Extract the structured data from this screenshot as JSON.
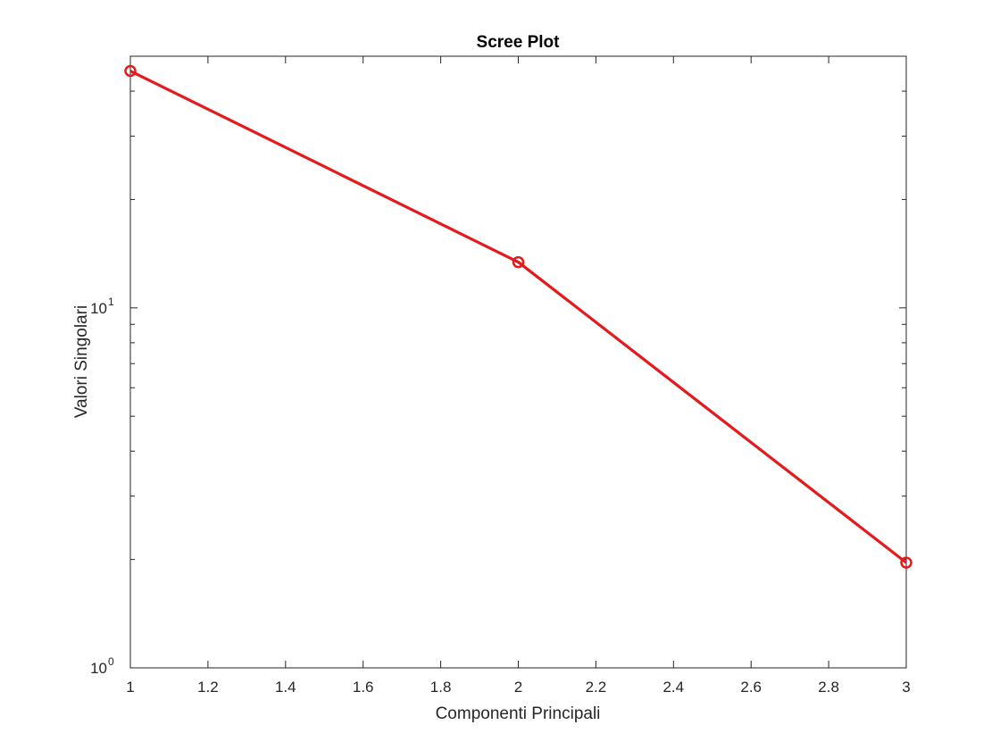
{
  "chart_data": {
    "type": "line",
    "title": "Scree Plot",
    "xlabel": "Componenti Principali",
    "ylabel": "Valori Singolari",
    "y_scale": "log",
    "xlim": [
      1,
      3
    ],
    "ylim": [
      1,
      50
    ],
    "x_ticks": [
      1,
      1.2,
      1.4,
      1.6,
      1.8,
      2,
      2.2,
      2.4,
      2.6,
      2.8,
      3
    ],
    "x_tick_labels": [
      "1",
      "1.2",
      "1.4",
      "1.6",
      "1.8",
      "2",
      "2.2",
      "2.4",
      "2.6",
      "2.8",
      "3"
    ],
    "y_major_ticks": [
      {
        "base": "10",
        "exp": "0",
        "value": 1
      },
      {
        "base": "10",
        "exp": "1",
        "value": 10
      }
    ],
    "grid": false,
    "box": true,
    "series": [
      {
        "x": [
          1,
          2,
          3
        ],
        "y": [
          45.5,
          13.4,
          1.96
        ],
        "color": "#e41a1c",
        "marker": "circle"
      }
    ]
  }
}
